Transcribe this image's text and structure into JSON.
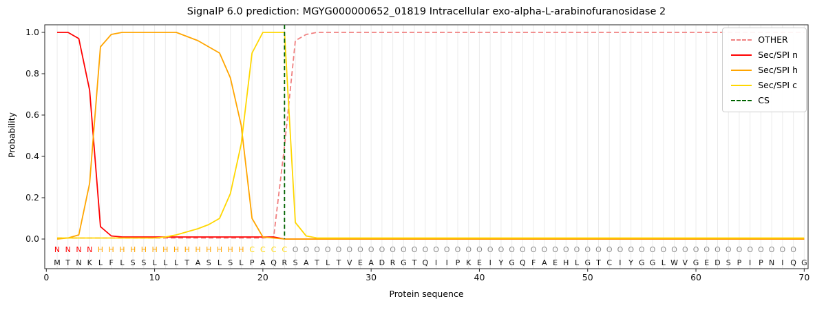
{
  "title": "SignalP 6.0 prediction: MGYG000000652_01819 Intracellular exo-alpha-L-arabinofuranosidase 2",
  "chart_data": {
    "type": "line",
    "xlabel": "Protein sequence",
    "ylabel": "Probability",
    "xlim": [
      0,
      70
    ],
    "ylim": [
      0.0,
      1.0
    ],
    "x_ticks": [
      0,
      10,
      20,
      30,
      40,
      50,
      60,
      70
    ],
    "y_ticks": [
      0.0,
      0.2,
      0.4,
      0.6,
      0.8,
      1.0
    ],
    "grid": "vertical gridline at every residue position",
    "legend_position": "upper right",
    "series": [
      {
        "name": "OTHER",
        "color": "#f08080",
        "dash": true,
        "values": [
          0.005,
          0.005,
          0.005,
          0.005,
          0.005,
          0.005,
          0.005,
          0.005,
          0.005,
          0.005,
          0.005,
          0.005,
          0.005,
          0.005,
          0.005,
          0.005,
          0.005,
          0.005,
          0.005,
          0.005,
          0.01,
          0.45,
          0.96,
          0.99,
          1.0,
          1.0,
          1.0,
          1.0,
          1.0,
          1.0,
          1.0,
          1.0,
          1.0,
          1.0,
          1.0,
          1.0,
          1.0,
          1.0,
          1.0,
          1.0,
          1.0,
          1.0,
          1.0,
          1.0,
          1.0,
          1.0,
          1.0,
          1.0,
          1.0,
          1.0,
          1.0,
          1.0,
          1.0,
          1.0,
          1.0,
          1.0,
          1.0,
          1.0,
          1.0,
          1.0,
          1.0,
          1.0,
          1.0,
          1.0,
          1.0,
          1.0,
          1.0,
          1.0,
          1.0,
          1.0
        ]
      },
      {
        "name": "Sec/SPI n",
        "color": "#ff0000",
        "dash": false,
        "values": [
          1.0,
          1.0,
          0.97,
          0.72,
          0.06,
          0.015,
          0.01,
          0.01,
          0.01,
          0.01,
          0.01,
          0.01,
          0.01,
          0.01,
          0.01,
          0.01,
          0.01,
          0.01,
          0.01,
          0.01,
          0.01,
          0.0,
          0.0,
          0.0,
          0.0,
          0.0,
          0.0,
          0.0,
          0.0,
          0.0,
          0.0,
          0.0,
          0.0,
          0.0,
          0.0,
          0.0,
          0.0,
          0.0,
          0.0,
          0.0,
          0.0,
          0.0,
          0.0,
          0.0,
          0.0,
          0.0,
          0.0,
          0.0,
          0.0,
          0.0,
          0.0,
          0.0,
          0.0,
          0.0,
          0.0,
          0.0,
          0.0,
          0.0,
          0.0,
          0.0,
          0.0,
          0.0,
          0.0,
          0.0,
          0.0,
          0.0,
          0.0,
          0.0,
          0.0,
          0.0
        ]
      },
      {
        "name": "Sec/SPI h",
        "color": "#ffa500",
        "dash": false,
        "values": [
          0.0,
          0.005,
          0.02,
          0.27,
          0.93,
          0.99,
          1.0,
          1.0,
          1.0,
          1.0,
          1.0,
          1.0,
          0.98,
          0.96,
          0.93,
          0.9,
          0.78,
          0.55,
          0.1,
          0.01,
          0.005,
          0.0,
          0.0,
          0.0,
          0.0,
          0.0,
          0.0,
          0.0,
          0.0,
          0.0,
          0.0,
          0.0,
          0.0,
          0.0,
          0.0,
          0.0,
          0.0,
          0.0,
          0.0,
          0.0,
          0.0,
          0.0,
          0.0,
          0.0,
          0.0,
          0.0,
          0.0,
          0.0,
          0.0,
          0.0,
          0.0,
          0.0,
          0.0,
          0.0,
          0.0,
          0.0,
          0.0,
          0.0,
          0.0,
          0.0,
          0.0,
          0.0,
          0.0,
          0.0,
          0.0,
          0.0,
          0.0,
          0.0,
          0.0,
          0.0
        ]
      },
      {
        "name": "Sec/SPI c",
        "color": "#ffd700",
        "dash": false,
        "values": [
          0.005,
          0.005,
          0.005,
          0.005,
          0.005,
          0.005,
          0.005,
          0.005,
          0.005,
          0.005,
          0.01,
          0.02,
          0.035,
          0.05,
          0.07,
          0.1,
          0.22,
          0.46,
          0.9,
          1.0,
          1.0,
          1.0,
          0.08,
          0.015,
          0.005,
          0.005,
          0.005,
          0.005,
          0.005,
          0.005,
          0.005,
          0.005,
          0.005,
          0.005,
          0.005,
          0.005,
          0.005,
          0.005,
          0.005,
          0.005,
          0.005,
          0.005,
          0.005,
          0.005,
          0.005,
          0.005,
          0.005,
          0.005,
          0.005,
          0.005,
          0.005,
          0.005,
          0.005,
          0.005,
          0.005,
          0.005,
          0.005,
          0.005,
          0.005,
          0.005,
          0.005,
          0.005,
          0.005,
          0.005,
          0.005,
          0.005,
          0.005,
          0.005,
          0.005,
          0.005
        ]
      }
    ],
    "cs_marker": {
      "name": "CS",
      "position": 22,
      "color": "#006400",
      "dash": true
    },
    "sequence": "MTNKLFLSSLLLTASLSLPAQRSATLTVEADRGTQIIPKEIYGQFAEHLGTCIYGGLWVGEDSPIPNIQG",
    "residue_classes": "NNNNHHHHHHHHHHHHHHCCCCOOOOOOOOOOOOOOOOOOOOOOOOOOOOOOOOOOOOOOOOOOOOOOO",
    "class_colors": {
      "N": "#ff0000",
      "H": "#ffa500",
      "C": "#ffd700",
      "O": "#888888"
    }
  }
}
